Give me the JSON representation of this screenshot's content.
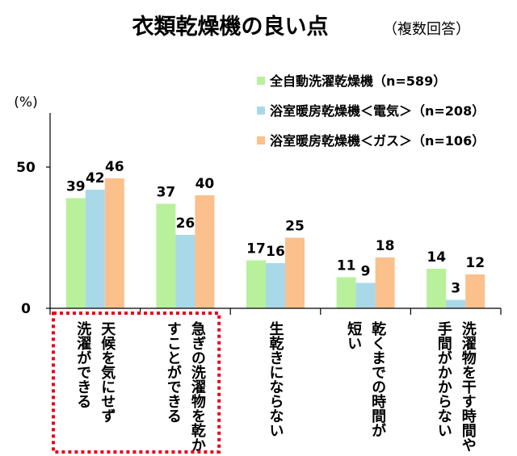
{
  "chart_data": {
    "type": "bar",
    "title": "衣類乾燥機の良い点",
    "subtitle": "（複数回答）",
    "ylabel": "(%)",
    "ylim": [
      0,
      50
    ],
    "yticks": [
      "0",
      "50"
    ],
    "grid": false,
    "legend_position": "top-right",
    "categories": [
      [
        "天候を気にせず",
        "洗濯ができる"
      ],
      [
        "急ぎの洗濯物を乾か",
        "すことができる"
      ],
      [
        "生乾きにならない"
      ],
      [
        "乾くまでの時間が",
        "短い"
      ],
      [
        "洗濯物を干す時間や",
        "手間がかからない"
      ]
    ],
    "series": [
      {
        "name": "全自動洗濯乾燥機（n=589）",
        "values": [
          39,
          37,
          17,
          11,
          14
        ],
        "color": "#b8f09c"
      },
      {
        "name": "浴室暖房乾燥機＜電気＞（n=208）",
        "values": [
          42,
          26,
          16,
          9,
          3
        ],
        "color": "#a9d8e8"
      },
      {
        "name": "浴室暖房乾燥機＜ガス＞（n=106）",
        "values": [
          46,
          40,
          25,
          18,
          12
        ],
        "color": "#fbc08c"
      }
    ],
    "highlight_categories": [
      0,
      1
    ],
    "highlight_color": "#e8001c"
  }
}
